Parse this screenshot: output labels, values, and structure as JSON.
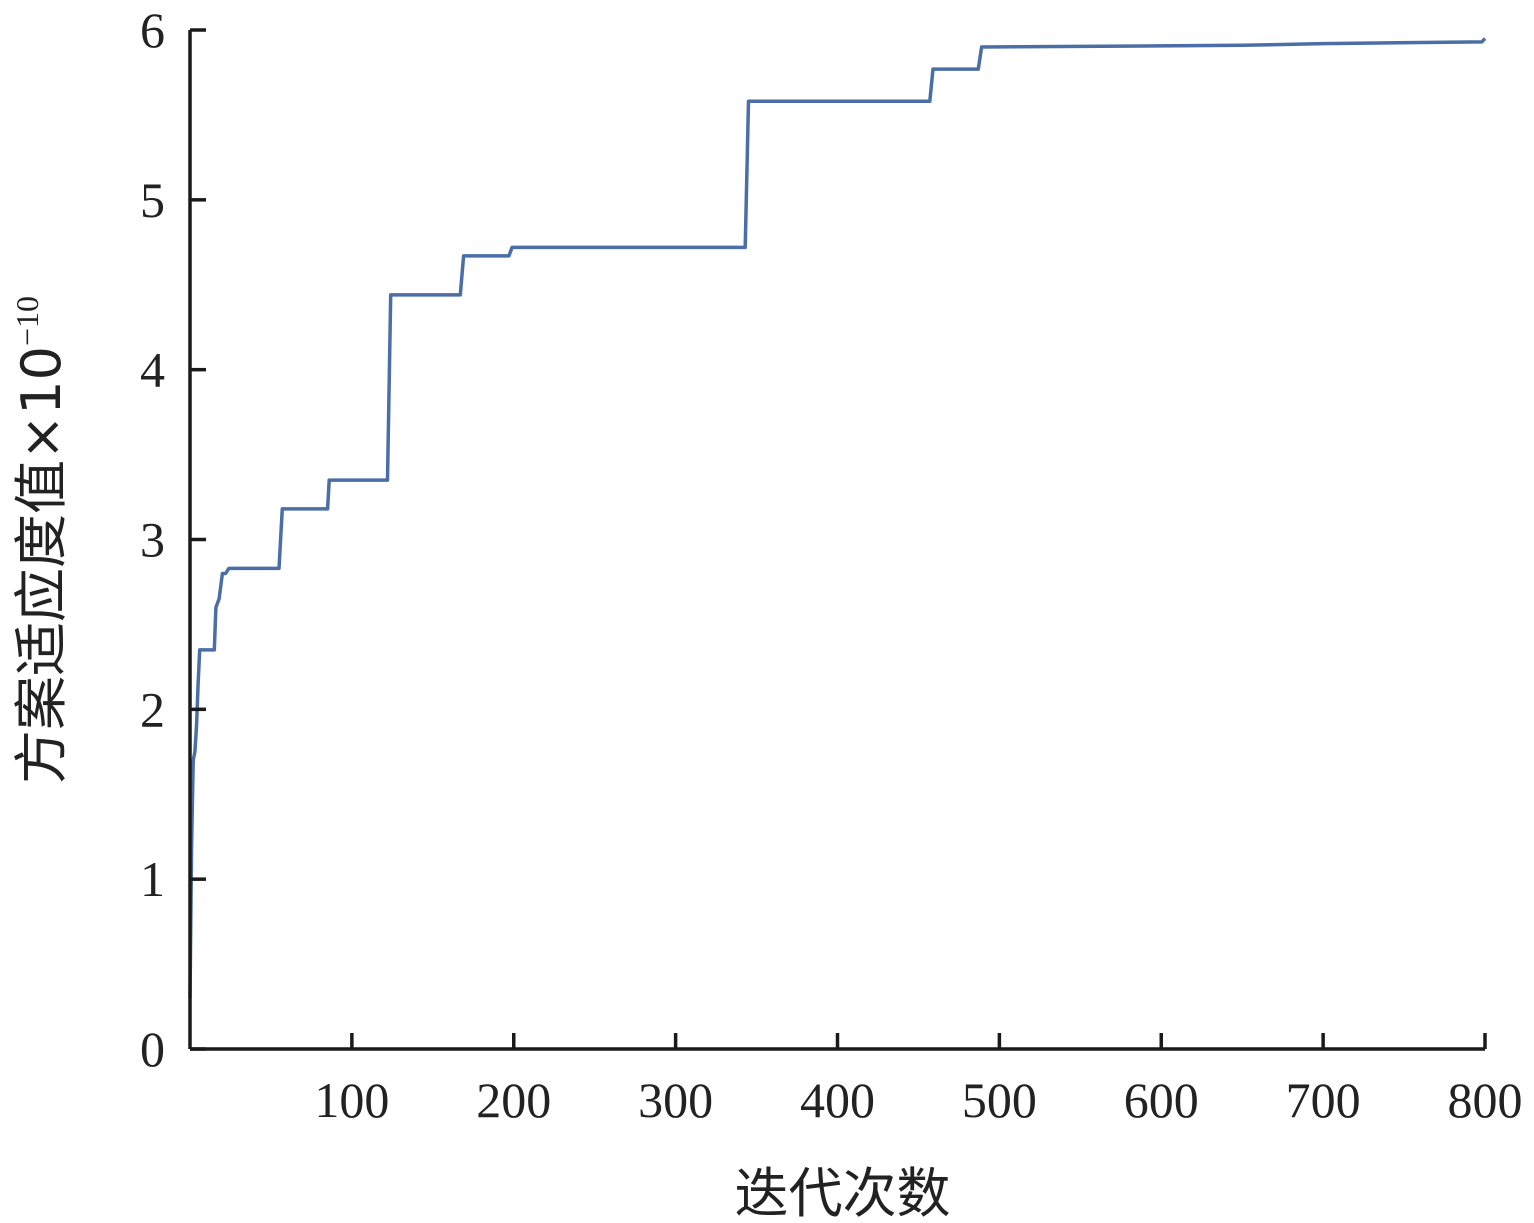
{
  "chart_data": {
    "type": "line",
    "xlabel": "迭代次数",
    "ylabel": "方案适应度值×10",
    "ylabel_exponent": "−10",
    "xlim": [
      0,
      800
    ],
    "ylim": [
      0,
      6
    ],
    "xticks": [
      100,
      200,
      300,
      400,
      500,
      600,
      700,
      800
    ],
    "yticks": [
      0,
      1,
      2,
      3,
      4,
      5,
      6
    ],
    "grid": false,
    "colors": {
      "line": "#4a6ea5",
      "axis": "#1a1a1a"
    },
    "series": [
      {
        "x": [
          0,
          1,
          2,
          3,
          4,
          5,
          6,
          7,
          8,
          10,
          15,
          16,
          18,
          20,
          22,
          24,
          55,
          57,
          85,
          86,
          122,
          124,
          167,
          169,
          197,
          199,
          343,
          345,
          457,
          459,
          487,
          489,
          650,
          700,
          798,
          800
        ],
        "y": [
          0.3,
          1.2,
          1.7,
          1.75,
          1.9,
          2.15,
          2.35,
          2.35,
          2.35,
          2.35,
          2.35,
          2.6,
          2.65,
          2.8,
          2.8,
          2.83,
          2.83,
          3.18,
          3.18,
          3.35,
          3.35,
          4.44,
          4.44,
          4.67,
          4.67,
          4.72,
          4.72,
          5.58,
          5.58,
          5.77,
          5.77,
          5.9,
          5.91,
          5.92,
          5.93,
          5.95
        ]
      }
    ]
  }
}
